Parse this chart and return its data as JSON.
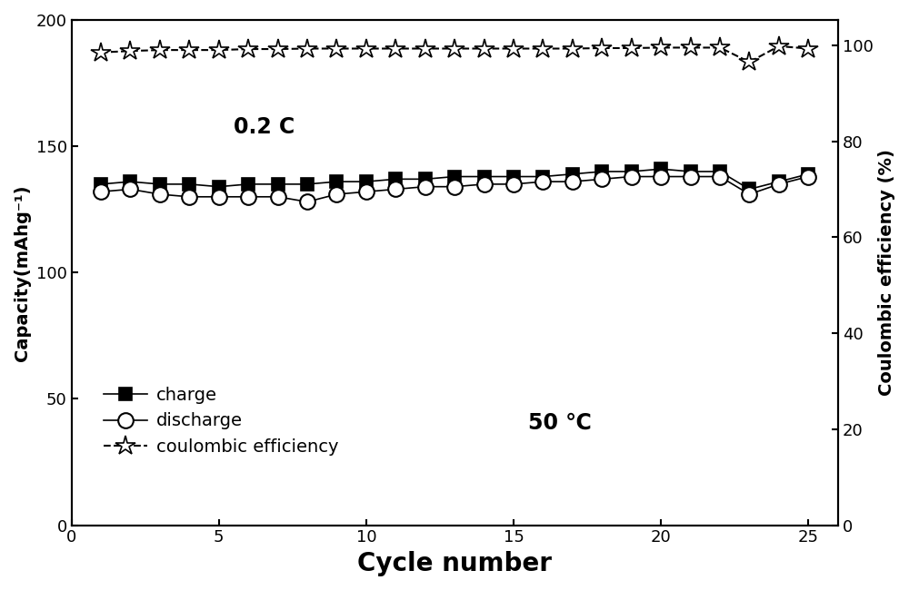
{
  "charge_x": [
    1,
    2,
    3,
    4,
    5,
    6,
    7,
    8,
    9,
    10,
    11,
    12,
    13,
    14,
    15,
    16,
    17,
    18,
    19,
    20,
    21,
    22,
    23,
    24,
    25
  ],
  "charge_y": [
    135,
    136,
    135,
    135,
    134,
    135,
    135,
    135,
    136,
    136,
    137,
    137,
    138,
    138,
    138,
    138,
    139,
    140,
    140,
    141,
    140,
    140,
    133,
    136,
    139
  ],
  "discharge_x": [
    1,
    2,
    3,
    4,
    5,
    6,
    7,
    8,
    9,
    10,
    11,
    12,
    13,
    14,
    15,
    16,
    17,
    18,
    19,
    20,
    21,
    22,
    23,
    24,
    25
  ],
  "discharge_y": [
    132,
    133,
    131,
    130,
    130,
    130,
    130,
    128,
    131,
    132,
    133,
    134,
    134,
    135,
    135,
    136,
    136,
    137,
    138,
    138,
    138,
    138,
    131,
    135,
    138
  ],
  "ce_x": [
    1,
    2,
    3,
    4,
    5,
    6,
    7,
    8,
    9,
    10,
    11,
    12,
    13,
    14,
    15,
    16,
    17,
    18,
    19,
    20,
    21,
    22,
    23,
    24,
    25
  ],
  "ce_y": [
    98.5,
    98.8,
    99.0,
    99.0,
    99.0,
    99.2,
    99.2,
    99.3,
    99.3,
    99.3,
    99.3,
    99.3,
    99.3,
    99.3,
    99.3,
    99.3,
    99.3,
    99.4,
    99.4,
    99.5,
    99.5,
    99.5,
    96.5,
    99.8,
    99.3
  ],
  "xlim": [
    0,
    26
  ],
  "ylim_left": [
    0,
    200
  ],
  "ylim_right": [
    0,
    105.26
  ],
  "xticks": [
    0,
    5,
    10,
    15,
    20,
    25
  ],
  "yticks_left": [
    0,
    50,
    100,
    150,
    200
  ],
  "yticks_right": [
    0,
    20,
    40,
    60,
    80,
    100
  ],
  "xlabel": "Cycle number",
  "ylabel_left": "Capacity(mAhg⁻¹)",
  "ylabel_right": "Coulombic efficiency (%)",
  "annotation_rate": "0.2 C",
  "annotation_temp": "50 ℃",
  "legend_charge": "charge",
  "legend_discharge": "discharge",
  "legend_ce": "coulombic efficiency",
  "line_color": "black",
  "bg_color": "white"
}
